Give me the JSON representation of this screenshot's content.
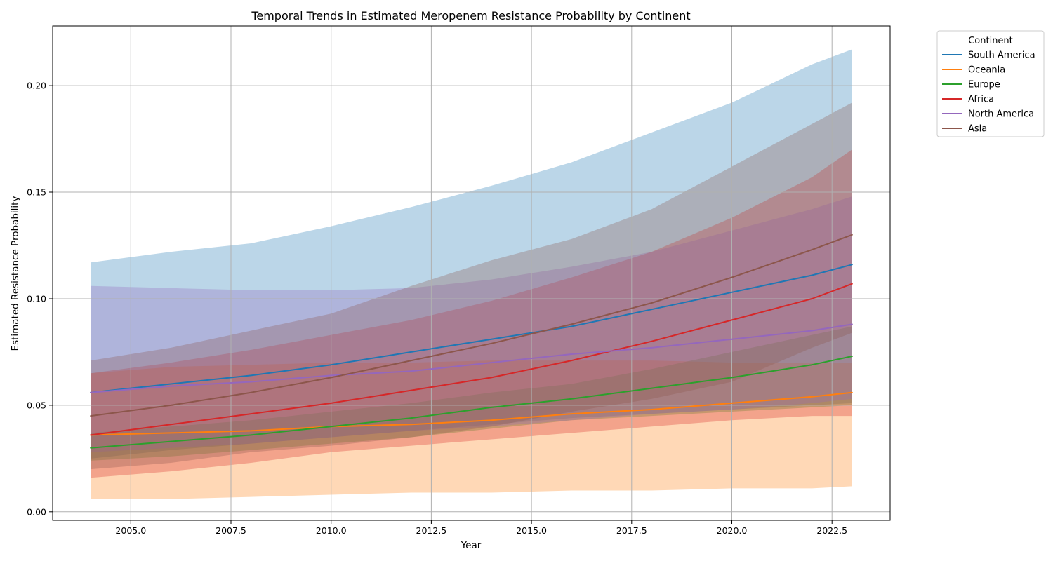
{
  "chart_data": {
    "type": "line",
    "title": "Temporal Trends in Estimated Meropenem Resistance Probability by Continent",
    "xlabel": "Year",
    "ylabel": "Estimated Resistance Probability",
    "xlim": [
      2003.05,
      2023.95
    ],
    "ylim": [
      -0.004,
      0.228
    ],
    "x_ticks": [
      2005.0,
      2007.5,
      2010.0,
      2012.5,
      2015.0,
      2017.5,
      2020.0,
      2022.5
    ],
    "x_tick_labels": [
      "2005.0",
      "2007.5",
      "2010.0",
      "2012.5",
      "2015.0",
      "2017.5",
      "2020.0",
      "2022.5"
    ],
    "y_ticks": [
      0.0,
      0.05,
      0.1,
      0.15,
      0.2
    ],
    "y_tick_labels": [
      "0.00",
      "0.05",
      "0.10",
      "0.15",
      "0.20"
    ],
    "grid": true,
    "legend": {
      "title": "Continent",
      "placement": "outside-top-right"
    },
    "x": [
      2004,
      2006,
      2008,
      2010,
      2012,
      2014,
      2016,
      2018,
      2020,
      2022,
      2023
    ],
    "series": [
      {
        "name": "South America",
        "color": "#1f77b4",
        "values": [
          0.056,
          0.06,
          0.064,
          0.069,
          0.075,
          0.081,
          0.087,
          0.095,
          0.103,
          0.111,
          0.116
        ],
        "lower": [
          0.025,
          0.029,
          0.032,
          0.035,
          0.038,
          0.041,
          0.044,
          0.046,
          0.048,
          0.05,
          0.051
        ],
        "upper": [
          0.117,
          0.122,
          0.126,
          0.134,
          0.143,
          0.153,
          0.164,
          0.178,
          0.192,
          0.21,
          0.217
        ]
      },
      {
        "name": "Oceania",
        "color": "#ff7f0e",
        "values": [
          0.036,
          0.037,
          0.038,
          0.04,
          0.041,
          0.043,
          0.046,
          0.048,
          0.051,
          0.054,
          0.056
        ],
        "lower": [
          0.006,
          0.006,
          0.007,
          0.008,
          0.009,
          0.009,
          0.01,
          0.01,
          0.011,
          0.011,
          0.012
        ],
        "upper": [
          0.065,
          0.068,
          0.069,
          0.07,
          0.07,
          0.071,
          0.071,
          0.071,
          0.07,
          0.07,
          0.07
        ]
      },
      {
        "name": "Europe",
        "color": "#2ca02c",
        "values": [
          0.03,
          0.033,
          0.036,
          0.04,
          0.044,
          0.049,
          0.053,
          0.058,
          0.063,
          0.069,
          0.073
        ],
        "lower": [
          0.024,
          0.026,
          0.029,
          0.032,
          0.035,
          0.039,
          0.043,
          0.045,
          0.047,
          0.049,
          0.05
        ],
        "upper": [
          0.037,
          0.04,
          0.043,
          0.047,
          0.051,
          0.056,
          0.06,
          0.067,
          0.075,
          0.083,
          0.087
        ]
      },
      {
        "name": "Africa",
        "color": "#d62728",
        "values": [
          0.036,
          0.041,
          0.046,
          0.051,
          0.057,
          0.063,
          0.071,
          0.08,
          0.09,
          0.1,
          0.107
        ],
        "lower": [
          0.016,
          0.019,
          0.023,
          0.028,
          0.031,
          0.034,
          0.037,
          0.04,
          0.043,
          0.045,
          0.045
        ],
        "upper": [
          0.065,
          0.07,
          0.076,
          0.083,
          0.09,
          0.099,
          0.11,
          0.122,
          0.138,
          0.157,
          0.17
        ]
      },
      {
        "name": "North America",
        "color": "#9467bd",
        "values": [
          0.056,
          0.059,
          0.061,
          0.064,
          0.066,
          0.07,
          0.074,
          0.077,
          0.081,
          0.085,
          0.088
        ],
        "lower": [
          0.028,
          0.03,
          0.032,
          0.035,
          0.038,
          0.04,
          0.043,
          0.046,
          0.048,
          0.051,
          0.053
        ],
        "upper": [
          0.106,
          0.105,
          0.104,
          0.104,
          0.105,
          0.109,
          0.115,
          0.122,
          0.132,
          0.142,
          0.148
        ]
      },
      {
        "name": "Asia",
        "color": "#8c564b",
        "values": [
          0.045,
          0.05,
          0.056,
          0.063,
          0.071,
          0.079,
          0.088,
          0.098,
          0.11,
          0.123,
          0.13
        ],
        "lower": [
          0.02,
          0.023,
          0.028,
          0.031,
          0.035,
          0.04,
          0.047,
          0.053,
          0.061,
          0.077,
          0.084
        ],
        "upper": [
          0.071,
          0.077,
          0.085,
          0.093,
          0.106,
          0.118,
          0.128,
          0.142,
          0.162,
          0.182,
          0.192
        ]
      }
    ]
  }
}
